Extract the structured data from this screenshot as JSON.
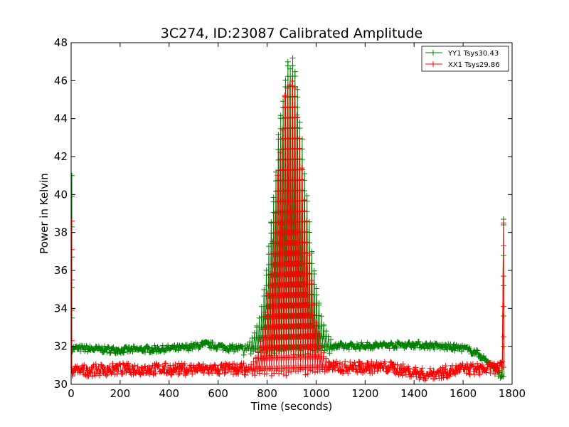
{
  "chart_data": {
    "type": "line",
    "title": "3C274, ID:23087 Calibrated Amplitude",
    "xlabel": "Time (seconds)",
    "ylabel": "Power in Kelvin",
    "xlim": [
      0,
      1800
    ],
    "ylim": [
      30,
      48
    ],
    "xticks": [
      "0",
      "200",
      "400",
      "600",
      "800",
      "1000",
      "1200",
      "1400",
      "1600",
      "1800"
    ],
    "yticks": [
      "30",
      "32",
      "34",
      "36",
      "38",
      "40",
      "42",
      "44",
      "46",
      "48"
    ],
    "legend_position": "top-right",
    "grid": false,
    "markers": "+",
    "series": [
      {
        "name": "YY1 Tsys30.43",
        "color": "#008000",
        "baseline": [
          [
            5,
            31.9
          ],
          [
            200,
            31.8
          ],
          [
            450,
            31.9
          ],
          [
            550,
            32.1
          ],
          [
            650,
            31.9
          ],
          [
            800,
            31.9
          ],
          [
            1100,
            32.0
          ],
          [
            1400,
            32.1
          ],
          [
            1600,
            31.9
          ],
          [
            1650,
            31.7
          ],
          [
            1700,
            31.2
          ],
          [
            1760,
            30.4
          ]
        ],
        "noise": 0.18,
        "oscillation": {
          "x_start": 700,
          "x_end": 1060,
          "peak_x": 895,
          "peak_y": 47.6,
          "width": 85,
          "count": 37
        },
        "spikes": [
          [
            3,
            41.0
          ],
          [
            1765,
            38.7
          ]
        ]
      },
      {
        "name": "XX1 Tsys29.86",
        "color": "#ff0000",
        "baseline": [
          [
            5,
            30.7
          ],
          [
            200,
            30.8
          ],
          [
            450,
            30.8
          ],
          [
            700,
            30.8
          ],
          [
            1000,
            30.9
          ],
          [
            1300,
            30.9
          ],
          [
            1450,
            30.5
          ],
          [
            1600,
            30.8
          ],
          [
            1700,
            30.8
          ],
          [
            1760,
            30.9
          ]
        ],
        "noise": 0.32,
        "oscillation": {
          "x_start": 715,
          "x_end": 1050,
          "peak_x": 895,
          "peak_y": 46.9,
          "width": 78,
          "count": 34
        },
        "spikes": [
          [
            3,
            38.6
          ],
          [
            1765,
            38.5
          ]
        ]
      }
    ]
  }
}
